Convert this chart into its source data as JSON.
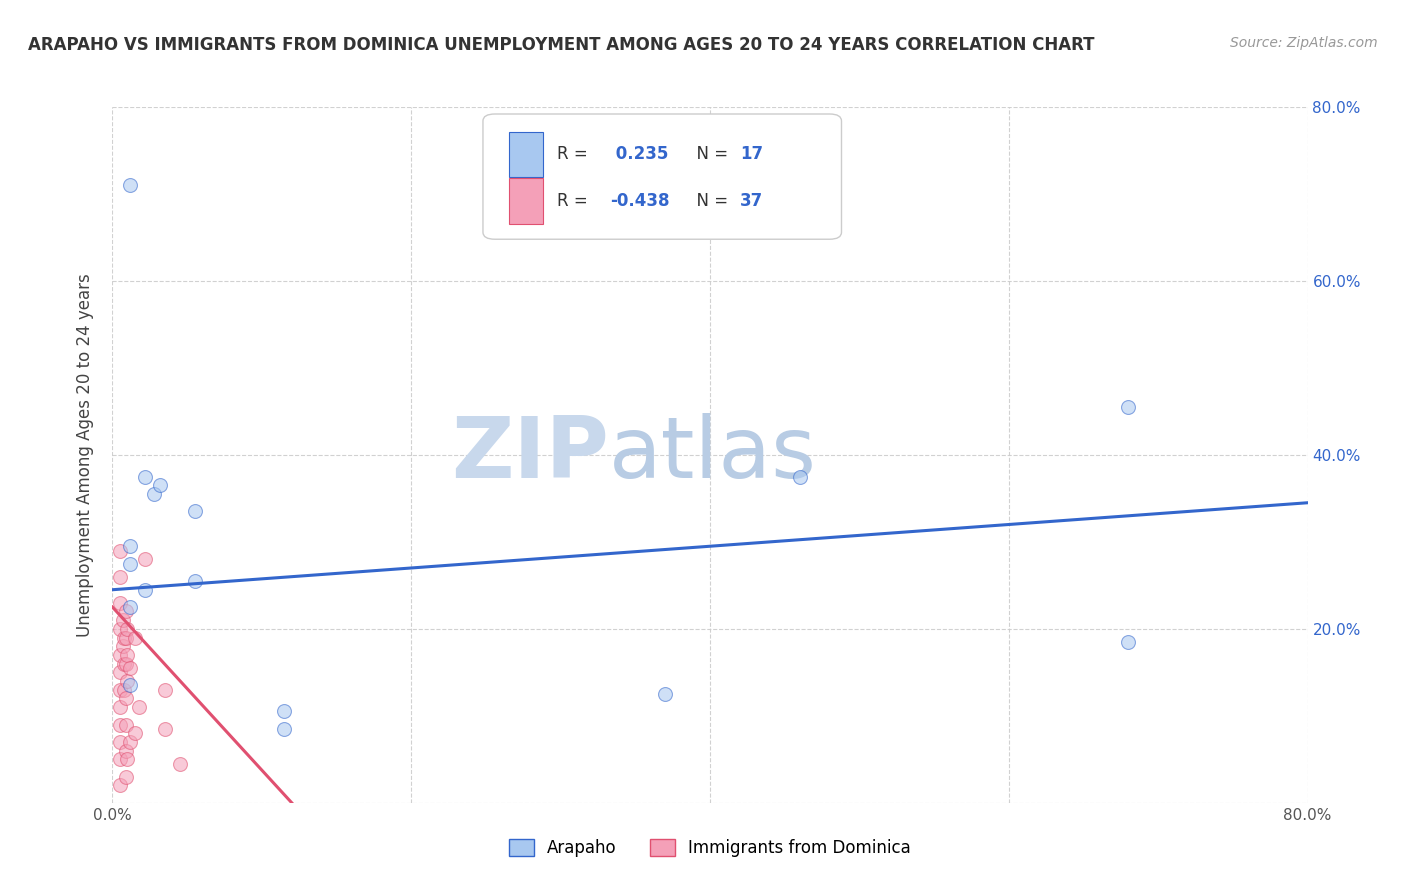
{
  "title": "ARAPAHO VS IMMIGRANTS FROM DOMINICA UNEMPLOYMENT AMONG AGES 20 TO 24 YEARS CORRELATION CHART",
  "source": "Source: ZipAtlas.com",
  "ylabel": "Unemployment Among Ages 20 to 24 years",
  "xlim": [
    0.0,
    0.8
  ],
  "ylim": [
    0.0,
    0.8
  ],
  "xticks": [
    0.0,
    0.2,
    0.4,
    0.6,
    0.8
  ],
  "yticks": [
    0.0,
    0.2,
    0.4,
    0.6,
    0.8
  ],
  "grid_color": "#cccccc",
  "background_color": "#ffffff",
  "arapaho_color": "#a8c8f0",
  "dominica_color": "#f4a0b8",
  "arapaho_line_color": "#3366cc",
  "dominica_line_color": "#e05070",
  "R_arapaho": 0.235,
  "N_arapaho": 17,
  "R_dominica": -0.438,
  "N_dominica": 37,
  "arapaho_line_x0": 0.0,
  "arapaho_line_y0": 0.245,
  "arapaho_line_x1": 0.8,
  "arapaho_line_y1": 0.345,
  "dominica_line_x0": 0.0,
  "dominica_line_y0": 0.225,
  "dominica_line_x1": 0.12,
  "dominica_line_y1": 0.0,
  "arapaho_points_x": [
    0.012,
    0.022,
    0.028,
    0.032,
    0.055,
    0.055,
    0.46,
    0.68,
    0.68,
    0.022,
    0.012,
    0.115,
    0.115,
    0.37,
    0.012,
    0.012,
    0.012
  ],
  "arapaho_points_y": [
    0.71,
    0.375,
    0.355,
    0.365,
    0.335,
    0.255,
    0.375,
    0.455,
    0.185,
    0.245,
    0.225,
    0.105,
    0.085,
    0.125,
    0.295,
    0.275,
    0.135
  ],
  "dominica_points_x": [
    0.005,
    0.005,
    0.005,
    0.005,
    0.005,
    0.005,
    0.005,
    0.005,
    0.005,
    0.005,
    0.005,
    0.005,
    0.007,
    0.007,
    0.008,
    0.008,
    0.008,
    0.009,
    0.009,
    0.009,
    0.009,
    0.009,
    0.009,
    0.009,
    0.01,
    0.01,
    0.01,
    0.01,
    0.012,
    0.012,
    0.015,
    0.015,
    0.018,
    0.022,
    0.035,
    0.035,
    0.045
  ],
  "dominica_points_y": [
    0.29,
    0.26,
    0.23,
    0.2,
    0.17,
    0.15,
    0.13,
    0.11,
    0.09,
    0.07,
    0.05,
    0.02,
    0.21,
    0.18,
    0.19,
    0.16,
    0.13,
    0.22,
    0.19,
    0.16,
    0.12,
    0.09,
    0.06,
    0.03,
    0.2,
    0.17,
    0.14,
    0.05,
    0.155,
    0.07,
    0.19,
    0.08,
    0.11,
    0.28,
    0.13,
    0.085,
    0.045
  ],
  "watermark_zip": "ZIP",
  "watermark_atlas": "atlas",
  "watermark_color": "#c8d8ec",
  "marker_size": 100,
  "marker_alpha": 0.55,
  "legend_text_color": "#3366cc",
  "legend_r_color": "#333333"
}
